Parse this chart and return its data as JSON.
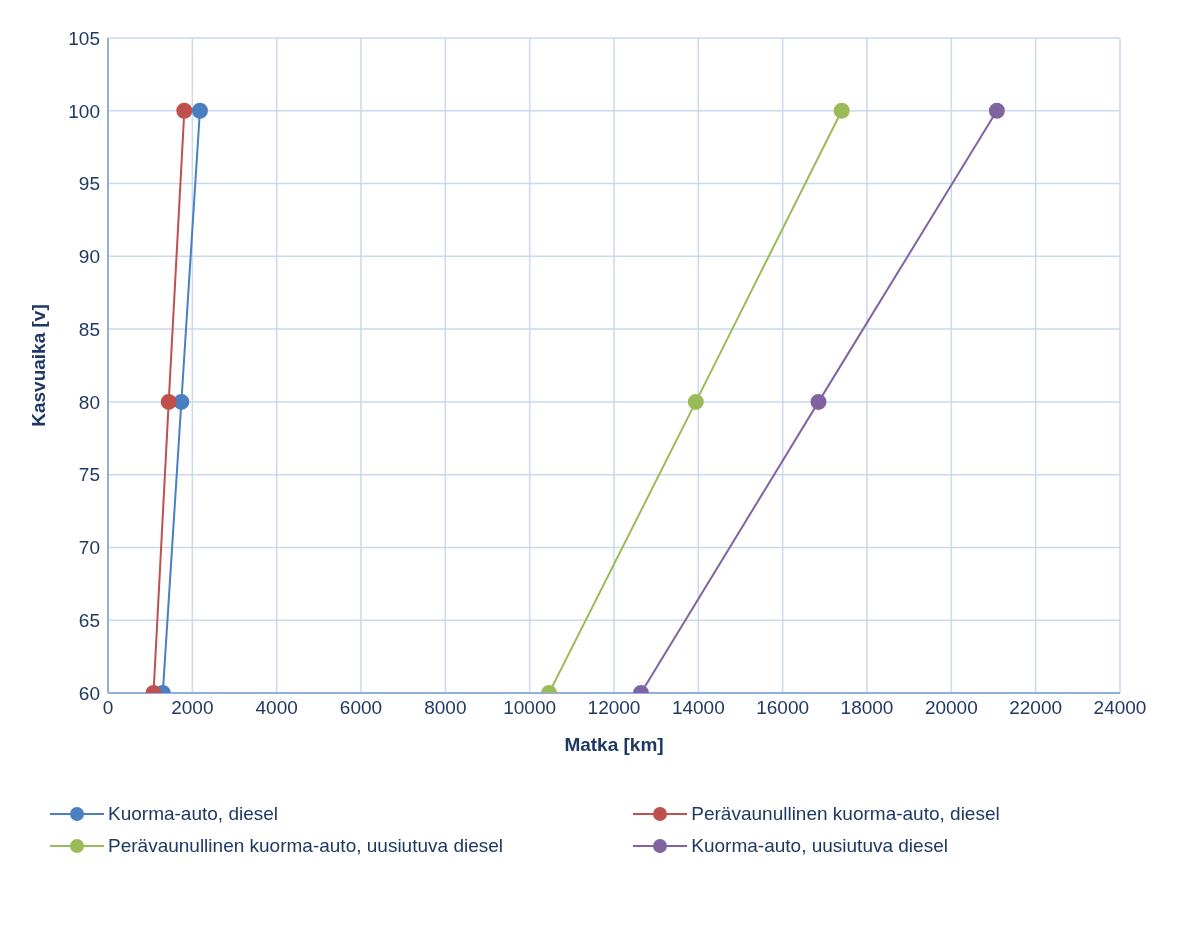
{
  "chart_data": {
    "type": "line",
    "xlabel": "Matka [km]",
    "ylabel": "Kasvuaika [v]",
    "xlim": [
      0,
      24000
    ],
    "xticks": [
      0,
      2000,
      4000,
      6000,
      8000,
      10000,
      12000,
      14000,
      16000,
      18000,
      20000,
      22000,
      24000
    ],
    "ylim": [
      60,
      105
    ],
    "yticks": [
      60,
      65,
      70,
      75,
      80,
      85,
      90,
      95,
      100,
      105
    ],
    "grid": true,
    "legend": "bottom",
    "marker": "circle",
    "series": [
      {
        "name": "Kuorma-auto, diesel",
        "color": "#4a7fc1",
        "x": [
          1300,
          1740,
          2180
        ],
        "values": [
          60,
          80,
          100
        ]
      },
      {
        "name": "Perävaunullinen kuorma-auto, diesel",
        "color": "#c0504d",
        "x": [
          1080,
          1440,
          1810
        ],
        "values": [
          60,
          80,
          100
        ]
      },
      {
        "name": "Perävaunullinen kuorma-auto, uusiutuva diesel",
        "color": "#9bbb59",
        "x": [
          10460,
          13940,
          17400
        ],
        "values": [
          60,
          80,
          100
        ]
      },
      {
        "name": "Kuorma-auto, uusiutuva diesel",
        "color": "#8064a2",
        "x": [
          12640,
          16850,
          21080
        ],
        "values": [
          60,
          80,
          100
        ]
      }
    ]
  }
}
